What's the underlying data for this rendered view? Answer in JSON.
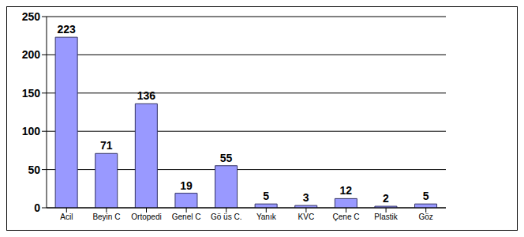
{
  "chart_data": {
    "type": "bar",
    "categories": [
      "Acil",
      "Beyin C",
      "Ortopedi",
      "Genel C",
      "Gö üs C.",
      "Yanık",
      "KVC",
      "Çene C",
      "Plastik",
      "Göz"
    ],
    "values": [
      223,
      71,
      136,
      19,
      55,
      5,
      3,
      12,
      2,
      5
    ],
    "color": "#9999ff",
    "ylim": [
      0,
      250
    ],
    "yticks": [
      0,
      50,
      100,
      150,
      200,
      250
    ],
    "grid": true,
    "data_labels": true
  }
}
